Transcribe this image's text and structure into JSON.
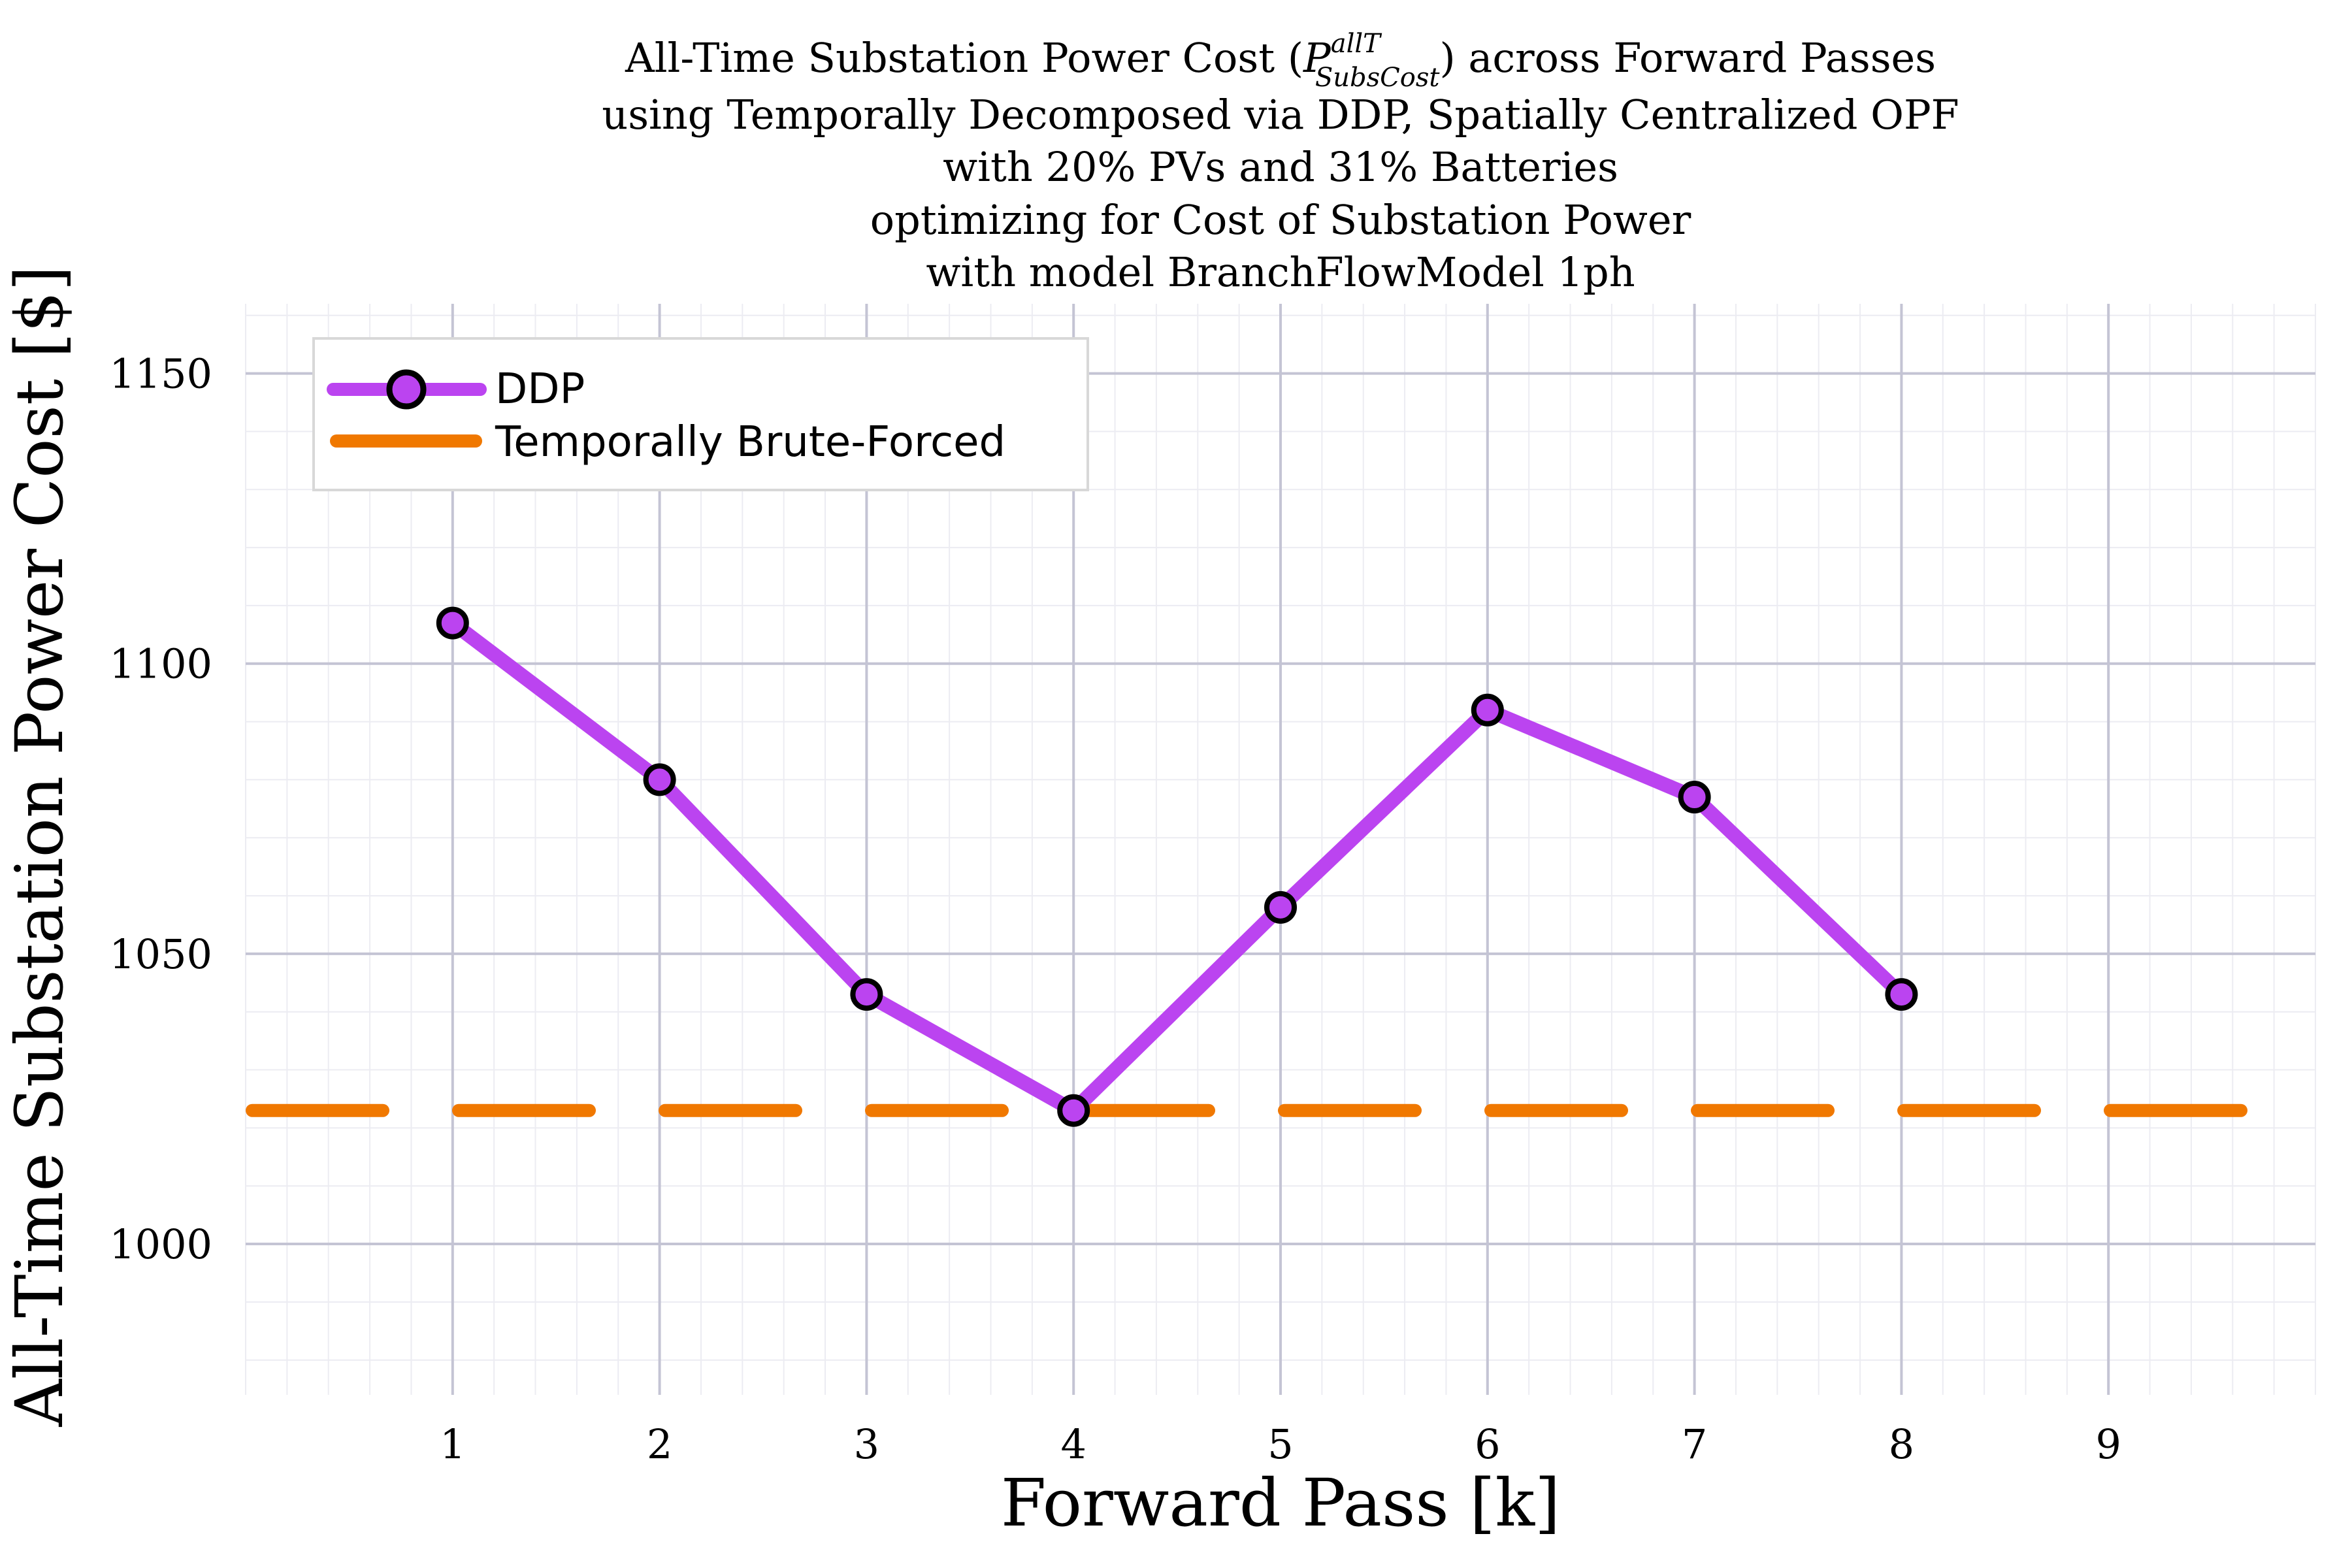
{
  "chart_data": {
    "type": "line",
    "title_lines": [
      "using Temporally Decomposed via DDP, Spatially Centralized OPF",
      "with 20% PVs and 31% Batteries",
      "optimizing for Cost of Substation Power",
      "with model BranchFlowModel 1ph"
    ],
    "title_line1": {
      "prefix": "All-Time Substation Power Cost (",
      "symbol": "P",
      "superscript": "allT",
      "subscript": "SubsCost",
      "suffix": ") across Forward Passes"
    },
    "xlabel": "Forward Pass [k]",
    "ylabel": "All-Time Substation Power Cost [$]",
    "xlim": [
      0,
      10
    ],
    "ylim": [
      974,
      1162
    ],
    "x_ticks": [
      1,
      2,
      3,
      4,
      5,
      6,
      7,
      8,
      9
    ],
    "y_ticks": [
      1000,
      1050,
      1100,
      1150
    ],
    "grid": true,
    "legend_position": "top-left",
    "series": [
      {
        "name": "DDP",
        "style": "line-with-markers",
        "color": "#bb44f0",
        "x": [
          1,
          2,
          3,
          4,
          5,
          6,
          7,
          8
        ],
        "values": [
          1107,
          1080,
          1043,
          1023,
          1058,
          1092,
          1077,
          1043
        ]
      },
      {
        "name": "Temporally Brute-Forced",
        "style": "dashed-horizontal",
        "color": "#f07800",
        "value": 1023
      }
    ]
  }
}
